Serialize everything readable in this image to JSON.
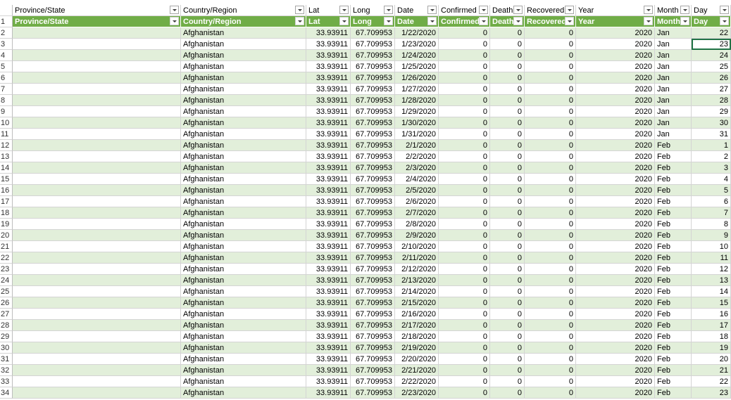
{
  "headers": [
    "Province/State",
    "Country/Region",
    "Lat",
    "Long",
    "Date",
    "Confirmed",
    "Death",
    "Recovered",
    "Year",
    "Month",
    "Day"
  ],
  "table_headers": [
    "Province/State",
    "Country/Region",
    "Lat",
    "Long",
    "Date",
    "Confirmed",
    "Death",
    "Recovered",
    "Year",
    "Month",
    "Day"
  ],
  "header_row_number": "1",
  "rows": [
    {
      "n": "2",
      "province": "",
      "country": "Afghanistan",
      "lat": "33.93911",
      "long": "67.709953",
      "date": "1/22/2020",
      "confirmed": "0",
      "death": "0",
      "recovered": "0",
      "year": "2020",
      "month": "Jan",
      "day": "22"
    },
    {
      "n": "3",
      "province": "",
      "country": "Afghanistan",
      "lat": "33.93911",
      "long": "67.709953",
      "date": "1/23/2020",
      "confirmed": "0",
      "death": "0",
      "recovered": "0",
      "year": "2020",
      "month": "Jan",
      "day": "23"
    },
    {
      "n": "4",
      "province": "",
      "country": "Afghanistan",
      "lat": "33.93911",
      "long": "67.709953",
      "date": "1/24/2020",
      "confirmed": "0",
      "death": "0",
      "recovered": "0",
      "year": "2020",
      "month": "Jan",
      "day": "24"
    },
    {
      "n": "5",
      "province": "",
      "country": "Afghanistan",
      "lat": "33.93911",
      "long": "67.709953",
      "date": "1/25/2020",
      "confirmed": "0",
      "death": "0",
      "recovered": "0",
      "year": "2020",
      "month": "Jan",
      "day": "25"
    },
    {
      "n": "6",
      "province": "",
      "country": "Afghanistan",
      "lat": "33.93911",
      "long": "67.709953",
      "date": "1/26/2020",
      "confirmed": "0",
      "death": "0",
      "recovered": "0",
      "year": "2020",
      "month": "Jan",
      "day": "26"
    },
    {
      "n": "7",
      "province": "",
      "country": "Afghanistan",
      "lat": "33.93911",
      "long": "67.709953",
      "date": "1/27/2020",
      "confirmed": "0",
      "death": "0",
      "recovered": "0",
      "year": "2020",
      "month": "Jan",
      "day": "27"
    },
    {
      "n": "8",
      "province": "",
      "country": "Afghanistan",
      "lat": "33.93911",
      "long": "67.709953",
      "date": "1/28/2020",
      "confirmed": "0",
      "death": "0",
      "recovered": "0",
      "year": "2020",
      "month": "Jan",
      "day": "28"
    },
    {
      "n": "9",
      "province": "",
      "country": "Afghanistan",
      "lat": "33.93911",
      "long": "67.709953",
      "date": "1/29/2020",
      "confirmed": "0",
      "death": "0",
      "recovered": "0",
      "year": "2020",
      "month": "Jan",
      "day": "29"
    },
    {
      "n": "10",
      "province": "",
      "country": "Afghanistan",
      "lat": "33.93911",
      "long": "67.709953",
      "date": "1/30/2020",
      "confirmed": "0",
      "death": "0",
      "recovered": "0",
      "year": "2020",
      "month": "Jan",
      "day": "30"
    },
    {
      "n": "11",
      "province": "",
      "country": "Afghanistan",
      "lat": "33.93911",
      "long": "67.709953",
      "date": "1/31/2020",
      "confirmed": "0",
      "death": "0",
      "recovered": "0",
      "year": "2020",
      "month": "Jan",
      "day": "31"
    },
    {
      "n": "12",
      "province": "",
      "country": "Afghanistan",
      "lat": "33.93911",
      "long": "67.709953",
      "date": "2/1/2020",
      "confirmed": "0",
      "death": "0",
      "recovered": "0",
      "year": "2020",
      "month": "Feb",
      "day": "1"
    },
    {
      "n": "13",
      "province": "",
      "country": "Afghanistan",
      "lat": "33.93911",
      "long": "67.709953",
      "date": "2/2/2020",
      "confirmed": "0",
      "death": "0",
      "recovered": "0",
      "year": "2020",
      "month": "Feb",
      "day": "2"
    },
    {
      "n": "14",
      "province": "",
      "country": "Afghanistan",
      "lat": "33.93911",
      "long": "67.709953",
      "date": "2/3/2020",
      "confirmed": "0",
      "death": "0",
      "recovered": "0",
      "year": "2020",
      "month": "Feb",
      "day": "3"
    },
    {
      "n": "15",
      "province": "",
      "country": "Afghanistan",
      "lat": "33.93911",
      "long": "67.709953",
      "date": "2/4/2020",
      "confirmed": "0",
      "death": "0",
      "recovered": "0",
      "year": "2020",
      "month": "Feb",
      "day": "4"
    },
    {
      "n": "16",
      "province": "",
      "country": "Afghanistan",
      "lat": "33.93911",
      "long": "67.709953",
      "date": "2/5/2020",
      "confirmed": "0",
      "death": "0",
      "recovered": "0",
      "year": "2020",
      "month": "Feb",
      "day": "5"
    },
    {
      "n": "17",
      "province": "",
      "country": "Afghanistan",
      "lat": "33.93911",
      "long": "67.709953",
      "date": "2/6/2020",
      "confirmed": "0",
      "death": "0",
      "recovered": "0",
      "year": "2020",
      "month": "Feb",
      "day": "6"
    },
    {
      "n": "18",
      "province": "",
      "country": "Afghanistan",
      "lat": "33.93911",
      "long": "67.709953",
      "date": "2/7/2020",
      "confirmed": "0",
      "death": "0",
      "recovered": "0",
      "year": "2020",
      "month": "Feb",
      "day": "7"
    },
    {
      "n": "19",
      "province": "",
      "country": "Afghanistan",
      "lat": "33.93911",
      "long": "67.709953",
      "date": "2/8/2020",
      "confirmed": "0",
      "death": "0",
      "recovered": "0",
      "year": "2020",
      "month": "Feb",
      "day": "8"
    },
    {
      "n": "20",
      "province": "",
      "country": "Afghanistan",
      "lat": "33.93911",
      "long": "67.709953",
      "date": "2/9/2020",
      "confirmed": "0",
      "death": "0",
      "recovered": "0",
      "year": "2020",
      "month": "Feb",
      "day": "9"
    },
    {
      "n": "21",
      "province": "",
      "country": "Afghanistan",
      "lat": "33.93911",
      "long": "67.709953",
      "date": "2/10/2020",
      "confirmed": "0",
      "death": "0",
      "recovered": "0",
      "year": "2020",
      "month": "Feb",
      "day": "10"
    },
    {
      "n": "22",
      "province": "",
      "country": "Afghanistan",
      "lat": "33.93911",
      "long": "67.709953",
      "date": "2/11/2020",
      "confirmed": "0",
      "death": "0",
      "recovered": "0",
      "year": "2020",
      "month": "Feb",
      "day": "11"
    },
    {
      "n": "23",
      "province": "",
      "country": "Afghanistan",
      "lat": "33.93911",
      "long": "67.709953",
      "date": "2/12/2020",
      "confirmed": "0",
      "death": "0",
      "recovered": "0",
      "year": "2020",
      "month": "Feb",
      "day": "12"
    },
    {
      "n": "24",
      "province": "",
      "country": "Afghanistan",
      "lat": "33.93911",
      "long": "67.709953",
      "date": "2/13/2020",
      "confirmed": "0",
      "death": "0",
      "recovered": "0",
      "year": "2020",
      "month": "Feb",
      "day": "13"
    },
    {
      "n": "25",
      "province": "",
      "country": "Afghanistan",
      "lat": "33.93911",
      "long": "67.709953",
      "date": "2/14/2020",
      "confirmed": "0",
      "death": "0",
      "recovered": "0",
      "year": "2020",
      "month": "Feb",
      "day": "14"
    },
    {
      "n": "26",
      "province": "",
      "country": "Afghanistan",
      "lat": "33.93911",
      "long": "67.709953",
      "date": "2/15/2020",
      "confirmed": "0",
      "death": "0",
      "recovered": "0",
      "year": "2020",
      "month": "Feb",
      "day": "15"
    },
    {
      "n": "27",
      "province": "",
      "country": "Afghanistan",
      "lat": "33.93911",
      "long": "67.709953",
      "date": "2/16/2020",
      "confirmed": "0",
      "death": "0",
      "recovered": "0",
      "year": "2020",
      "month": "Feb",
      "day": "16"
    },
    {
      "n": "28",
      "province": "",
      "country": "Afghanistan",
      "lat": "33.93911",
      "long": "67.709953",
      "date": "2/17/2020",
      "confirmed": "0",
      "death": "0",
      "recovered": "0",
      "year": "2020",
      "month": "Feb",
      "day": "17"
    },
    {
      "n": "29",
      "province": "",
      "country": "Afghanistan",
      "lat": "33.93911",
      "long": "67.709953",
      "date": "2/18/2020",
      "confirmed": "0",
      "death": "0",
      "recovered": "0",
      "year": "2020",
      "month": "Feb",
      "day": "18"
    },
    {
      "n": "30",
      "province": "",
      "country": "Afghanistan",
      "lat": "33.93911",
      "long": "67.709953",
      "date": "2/19/2020",
      "confirmed": "0",
      "death": "0",
      "recovered": "0",
      "year": "2020",
      "month": "Feb",
      "day": "19"
    },
    {
      "n": "31",
      "province": "",
      "country": "Afghanistan",
      "lat": "33.93911",
      "long": "67.709953",
      "date": "2/20/2020",
      "confirmed": "0",
      "death": "0",
      "recovered": "0",
      "year": "2020",
      "month": "Feb",
      "day": "20"
    },
    {
      "n": "32",
      "province": "",
      "country": "Afghanistan",
      "lat": "33.93911",
      "long": "67.709953",
      "date": "2/21/2020",
      "confirmed": "0",
      "death": "0",
      "recovered": "0",
      "year": "2020",
      "month": "Feb",
      "day": "21"
    },
    {
      "n": "33",
      "province": "",
      "country": "Afghanistan",
      "lat": "33.93911",
      "long": "67.709953",
      "date": "2/22/2020",
      "confirmed": "0",
      "death": "0",
      "recovered": "0",
      "year": "2020",
      "month": "Feb",
      "day": "22"
    },
    {
      "n": "34",
      "province": "",
      "country": "Afghanistan",
      "lat": "33.93911",
      "long": "67.709953",
      "date": "2/23/2020",
      "confirmed": "0",
      "death": "0",
      "recovered": "0",
      "year": "2020",
      "month": "Feb",
      "day": "23"
    }
  ],
  "selected_cell": {
    "row": "3",
    "column": "Day"
  },
  "colors": {
    "header_green": "#70ad47",
    "band_green": "#e2efda",
    "selection": "#217346"
  }
}
